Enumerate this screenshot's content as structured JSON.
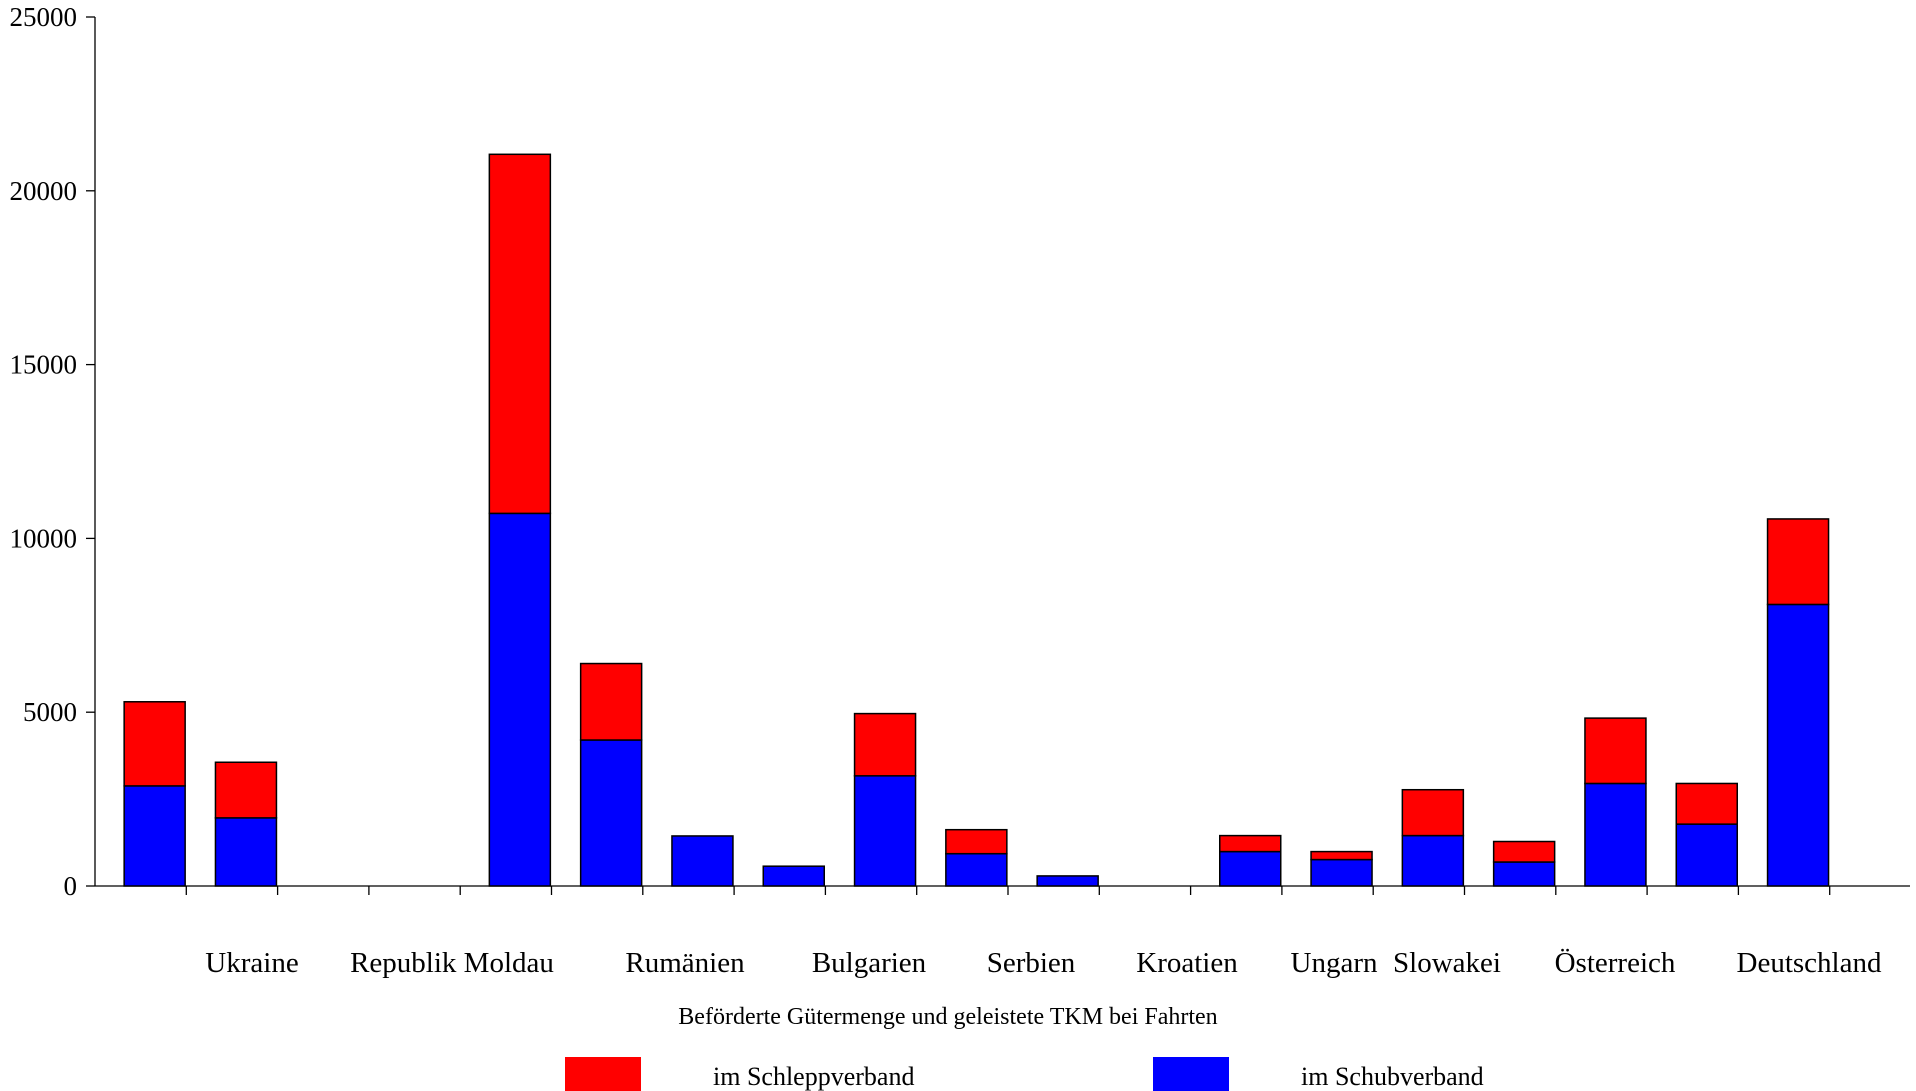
{
  "chart_data": {
    "type": "bar",
    "stacked": true,
    "xlabel": "Beförderte Gütermenge und geleistete TKM bei Fahrten",
    "ylabel": "",
    "ylim": [
      0,
      25000
    ],
    "yticks": [
      0,
      5000,
      10000,
      15000,
      20000,
      25000
    ],
    "grid": false,
    "legend": "bottom",
    "group_labels": [
      "Ukraine",
      "Republik Moldau",
      "Rumänien",
      "Bulgarien",
      "Serbien",
      "Kroatien",
      "Ungarn",
      "Slowakei",
      "Österreich",
      "Deutschland"
    ],
    "bar_count": 19,
    "series": [
      {
        "name": "im Schubverband",
        "color": "#0000ff",
        "values": [
          2880,
          1960,
          0,
          0,
          10720,
          4200,
          1440,
          570,
          3170,
          930,
          290,
          0,
          990,
          760,
          1450,
          690,
          2950,
          1780,
          8100
        ]
      },
      {
        "name": "im Schleppverband",
        "color": "#ff0000",
        "values": [
          2420,
          1600,
          0,
          0,
          10330,
          2200,
          0,
          0,
          1790,
          690,
          0,
          0,
          460,
          230,
          1320,
          590,
          1880,
          1170,
          2460
        ]
      }
    ],
    "legend_order": [
      "im Schleppverband",
      "im Schubverband"
    ]
  }
}
